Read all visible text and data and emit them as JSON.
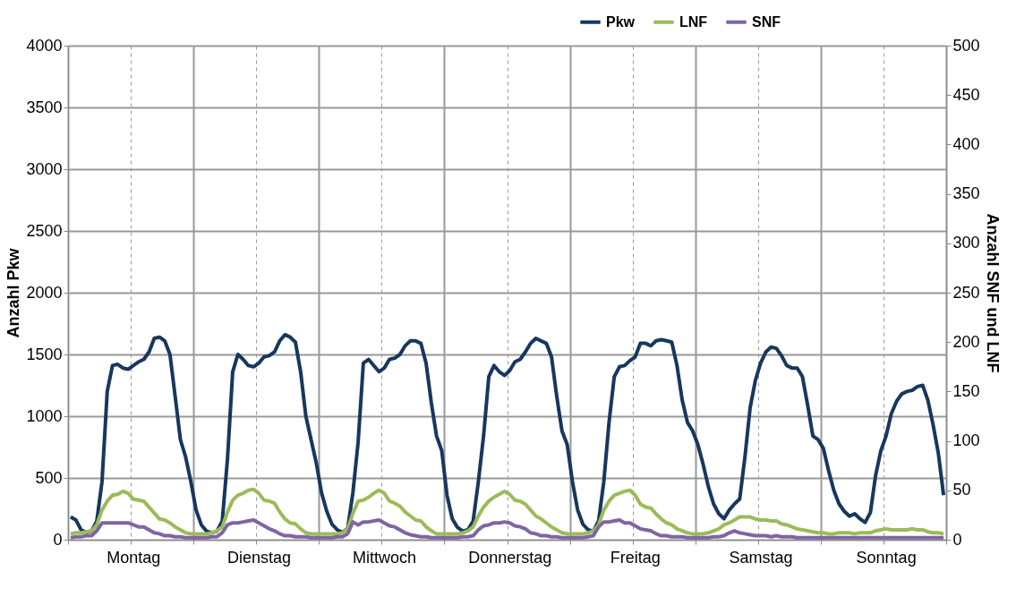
{
  "chart_data": {
    "type": "line",
    "ylabel": "Anzahl Pkw",
    "y2label": "Anzahl SNF und LNF",
    "categories": [
      null,
      null,
      null,
      null,
      null,
      null,
      null,
      null,
      null,
      null,
      null,
      null,
      "Montag",
      null,
      null,
      null,
      null,
      null,
      null,
      null,
      null,
      null,
      null,
      null,
      null,
      null,
      null,
      null,
      null,
      null,
      null,
      null,
      null,
      null,
      null,
      null,
      "Dienstag",
      null,
      null,
      null,
      null,
      null,
      null,
      null,
      null,
      null,
      null,
      null,
      null,
      null,
      null,
      null,
      null,
      null,
      null,
      null,
      null,
      null,
      null,
      null,
      "Mittwoch",
      null,
      null,
      null,
      null,
      null,
      null,
      null,
      null,
      null,
      null,
      null,
      null,
      null,
      null,
      null,
      null,
      null,
      null,
      null,
      null,
      null,
      null,
      null,
      "Donnerstag",
      null,
      null,
      null,
      null,
      null,
      null,
      null,
      null,
      null,
      null,
      null,
      null,
      null,
      null,
      null,
      null,
      null,
      null,
      null,
      null,
      null,
      null,
      null,
      "Freitag",
      null,
      null,
      null,
      null,
      null,
      null,
      null,
      null,
      null,
      null,
      null,
      null,
      null,
      null,
      null,
      null,
      null,
      null,
      null,
      null,
      null,
      null,
      null,
      "Samstag",
      null,
      null,
      null,
      null,
      null,
      null,
      null,
      null,
      null,
      null,
      null,
      null,
      null,
      null,
      null,
      null,
      null,
      null,
      null,
      null,
      null,
      null,
      null,
      "Sonntag",
      null,
      null,
      null,
      null,
      null,
      null,
      null,
      null,
      null,
      null,
      null
    ],
    "series": [
      {
        "name": "Pkw",
        "color": "#17375e",
        "values": [
          185,
          160,
          80,
          60,
          70,
          150,
          470,
          1200,
          1410,
          1420,
          1390,
          1380,
          1410,
          1440,
          1460,
          1520,
          1630,
          1640,
          1610,
          1500,
          1160,
          810,
          670,
          470,
          240,
          120,
          70,
          55,
          70,
          150,
          650,
          1360,
          1500,
          1460,
          1410,
          1400,
          1430,
          1480,
          1490,
          1520,
          1610,
          1660,
          1640,
          1600,
          1360,
          1000,
          810,
          620,
          380,
          230,
          125,
          80,
          60,
          90,
          380,
          790,
          1430,
          1460,
          1410,
          1360,
          1390,
          1460,
          1470,
          1500,
          1570,
          1610,
          1610,
          1590,
          1430,
          1110,
          840,
          720,
          360,
          170,
          100,
          70,
          80,
          150,
          470,
          840,
          1320,
          1410,
          1360,
          1330,
          1370,
          1440,
          1460,
          1520,
          1590,
          1630,
          1610,
          1590,
          1480,
          1160,
          880,
          770,
          470,
          240,
          125,
          80,
          70,
          150,
          470,
          950,
          1320,
          1400,
          1410,
          1450,
          1480,
          1590,
          1590,
          1570,
          1610,
          1620,
          1610,
          1600,
          1410,
          1130,
          950,
          880,
          770,
          610,
          430,
          290,
          210,
          170,
          240,
          290,
          330,
          670,
          1070,
          1290,
          1430,
          1520,
          1560,
          1550,
          1490,
          1410,
          1390,
          1390,
          1320,
          1090,
          840,
          810,
          740,
          560,
          400,
          290,
          230,
          190,
          210,
          170,
          140,
          220,
          520,
          720,
          840,
          1020,
          1120,
          1180,
          1200,
          1210,
          1240,
          1250,
          1130,
          930,
          700,
          360
        ]
      },
      {
        "name": "LNF",
        "color": "#9bbb59",
        "axis": "y2",
        "values": [
          6,
          7,
          7,
          8,
          9,
          15,
          30,
          39,
          45,
          46,
          49,
          47,
          41,
          40,
          39,
          33,
          27,
          21,
          20,
          17,
          13,
          10,
          7,
          6,
          6,
          6,
          6,
          7,
          9,
          13,
          28,
          40,
          45,
          47,
          50,
          51,
          47,
          40,
          39,
          37,
          28,
          21,
          17,
          16,
          11,
          7,
          6,
          6,
          6,
          6,
          6,
          6,
          7,
          11,
          27,
          39,
          40,
          43,
          47,
          50,
          47,
          39,
          37,
          34,
          28,
          24,
          20,
          19,
          13,
          9,
          6,
          6,
          6,
          6,
          6,
          7,
          9,
          13,
          24,
          33,
          39,
          43,
          46,
          49,
          46,
          40,
          39,
          36,
          30,
          24,
          21,
          17,
          13,
          10,
          7,
          6,
          6,
          6,
          6,
          7,
          9,
          15,
          30,
          39,
          45,
          47,
          49,
          50,
          45,
          36,
          33,
          32,
          26,
          21,
          17,
          15,
          11,
          9,
          7,
          6,
          6,
          6,
          7,
          9,
          11,
          15,
          17,
          20,
          23,
          23,
          23,
          21,
          20,
          20,
          19,
          19,
          16,
          15,
          13,
          11,
          10,
          9,
          8,
          7,
          7,
          6,
          6,
          7,
          7,
          7,
          6,
          7,
          7,
          7,
          9,
          10,
          11,
          10,
          10,
          10,
          10,
          11,
          10,
          10,
          8,
          7,
          7,
          6
        ]
      },
      {
        "name": "SNF",
        "color": "#8064a2",
        "axis": "y2",
        "values": [
          2,
          3,
          3,
          4,
          4,
          9,
          17,
          17,
          17,
          17,
          17,
          17,
          15,
          13,
          13,
          10,
          7,
          6,
          4,
          4,
          3,
          3,
          2,
          2,
          2,
          2,
          2,
          3,
          3,
          7,
          15,
          17,
          17,
          18,
          19,
          20,
          17,
          14,
          11,
          9,
          6,
          4,
          4,
          3,
          3,
          3,
          2,
          2,
          2,
          2,
          2,
          3,
          3,
          6,
          18,
          15,
          18,
          18,
          19,
          20,
          17,
          14,
          13,
          10,
          7,
          5,
          4,
          3,
          3,
          2,
          2,
          2,
          2,
          2,
          2,
          3,
          3,
          4,
          10,
          14,
          15,
          17,
          17,
          18,
          17,
          14,
          13,
          11,
          7,
          6,
          4,
          4,
          3,
          3,
          2,
          2,
          2,
          2,
          2,
          3,
          4,
          13,
          18,
          18,
          19,
          20,
          17,
          17,
          14,
          11,
          10,
          9,
          6,
          4,
          4,
          3,
          3,
          3,
          2,
          2,
          2,
          2,
          2,
          3,
          3,
          4,
          7,
          9,
          7,
          6,
          5,
          4,
          4,
          4,
          3,
          4,
          3,
          3,
          3,
          2,
          2,
          2,
          2,
          2,
          2,
          2,
          2,
          2,
          2,
          2,
          2,
          2,
          2,
          2,
          2,
          2,
          2,
          2,
          2,
          2,
          2,
          2,
          2,
          2,
          2,
          2,
          2,
          2
        ]
      }
    ],
    "ylim": [
      0,
      4000
    ],
    "yticks": [
      0,
      500,
      1000,
      1500,
      2000,
      2500,
      3000,
      3500,
      4000
    ],
    "y2lim": [
      0,
      500
    ],
    "y2ticks": [
      0,
      50,
      100,
      150,
      200,
      250,
      300,
      350,
      400,
      450,
      500
    ],
    "grid": true,
    "legend": "top right",
    "line_style": "solid"
  }
}
